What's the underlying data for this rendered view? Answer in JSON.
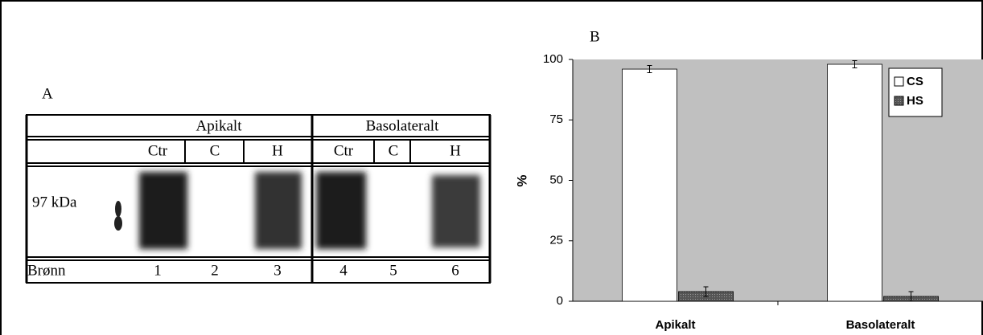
{
  "panel_a": {
    "label": "A",
    "header_groups": [
      "Apikalt",
      "Basolateralt"
    ],
    "lanes": [
      "Ctr",
      "C",
      "H",
      "Ctr",
      "C",
      "H"
    ],
    "marker": "97 kDa",
    "row_label": "Brønn",
    "wells": [
      1,
      2,
      3,
      4,
      5,
      6
    ]
  },
  "chart_data": {
    "type": "bar",
    "title": "B",
    "ylabel": "%",
    "categories": [
      "Apikalt",
      "Basolateralt"
    ],
    "series": [
      {
        "name": "CS",
        "color": "#ffffff",
        "values": [
          96,
          98
        ],
        "errors": [
          1.5,
          1.5
        ]
      },
      {
        "name": "HS",
        "color": "#606060",
        "values": [
          4,
          2
        ],
        "errors": [
          2,
          2
        ]
      }
    ],
    "ylim": [
      0,
      100
    ],
    "yticks": [
      0,
      25,
      50,
      75,
      100
    ],
    "background": "#c0c0c0",
    "legend": "upper right"
  }
}
